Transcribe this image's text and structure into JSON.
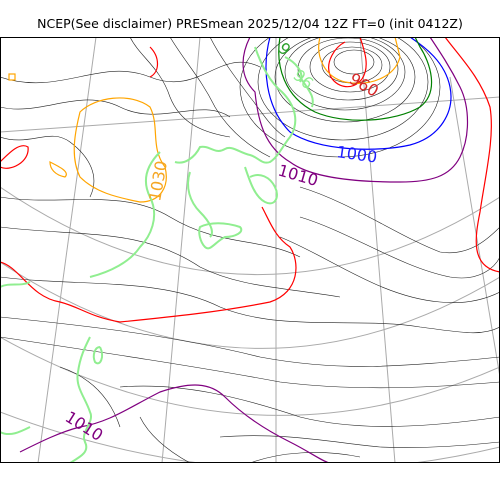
{
  "title": "NCEP(See disclaimer) PRESmean 2025/12/04 12Z FT=0 (init 0412Z)",
  "contour_labels": [
    {
      "text": "960",
      "color": "#d62728"
    },
    {
      "text": "1000",
      "color": "#1f1fff"
    },
    {
      "text": "1010",
      "color": "#800080"
    },
    {
      "text": "1030",
      "color": "#f5a623"
    },
    {
      "text": "1010",
      "color": "#800080"
    },
    {
      "text": "9",
      "color": "#2ca02c"
    },
    {
      "text": "96",
      "color": "#90ee90"
    }
  ],
  "colors": {
    "isobar_thin": "#000000",
    "isobar_red": "#ff0000",
    "isobar_blue": "#0000ff",
    "isobar_green": "#008000",
    "isobar_purple": "#800080",
    "isobar_orange": "#ffa500",
    "coastline": "#90ee90",
    "graticule": "#aaaaaa"
  }
}
